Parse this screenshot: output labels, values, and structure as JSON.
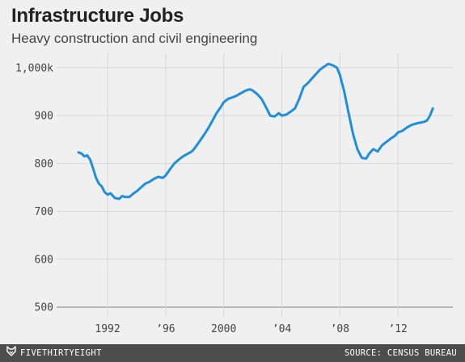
{
  "chart_data": {
    "type": "line",
    "title": "Infrastructure Jobs",
    "subtitle": "Heavy construction and civil engineering",
    "xlabel": "",
    "ylabel": "",
    "xlim": [
      1988.6,
      2015.5
    ],
    "ylim": [
      480,
      1030
    ],
    "x_ticks": [
      {
        "value": 1992,
        "label": "1992"
      },
      {
        "value": 1996,
        "label": "’96"
      },
      {
        "value": 2000,
        "label": "2000"
      },
      {
        "value": 2004,
        "label": "’04"
      },
      {
        "value": 2008,
        "label": "’08"
      },
      {
        "value": 2012,
        "label": "’12"
      }
    ],
    "y_ticks": [
      {
        "value": 500,
        "label": "500"
      },
      {
        "value": 600,
        "label": "600"
      },
      {
        "value": 700,
        "label": "700"
      },
      {
        "value": 800,
        "label": "800"
      },
      {
        "value": 900,
        "label": "900"
      },
      {
        "value": 1000,
        "label": "1,000k"
      }
    ],
    "grid": true,
    "color": "#1f8fdb",
    "series": [
      {
        "name": "",
        "x": [
          1990.0,
          1990.2,
          1990.4,
          1990.6,
          1990.8,
          1991.0,
          1991.2,
          1991.4,
          1991.6,
          1991.8,
          1992.0,
          1992.2,
          1992.5,
          1992.8,
          1993.0,
          1993.2,
          1993.5,
          1993.8,
          1994.0,
          1994.3,
          1994.6,
          1994.9,
          1995.2,
          1995.5,
          1995.8,
          1996.0,
          1996.3,
          1996.6,
          1996.9,
          1997.2,
          1997.5,
          1997.8,
          1998.0,
          1998.3,
          1998.6,
          1998.9,
          1999.2,
          1999.5,
          1999.8,
          2000.0,
          2000.3,
          2000.6,
          2000.9,
          2001.2,
          2001.5,
          2001.8,
          2002.0,
          2002.3,
          2002.6,
          2002.9,
          2003.2,
          2003.5,
          2003.8,
          2004.0,
          2004.3,
          2004.6,
          2004.9,
          2005.2,
          2005.5,
          2005.8,
          2006.0,
          2006.3,
          2006.6,
          2006.9,
          2007.2,
          2007.5,
          2007.8,
          2008.0,
          2008.3,
          2008.6,
          2008.9,
          2009.2,
          2009.5,
          2009.8,
          2010.0,
          2010.3,
          2010.6,
          2010.9,
          2011.2,
          2011.5,
          2011.8,
          2012.0,
          2012.3,
          2012.6,
          2012.9,
          2013.2,
          2013.5,
          2013.8,
          2014.0,
          2014.2,
          2014.4
        ],
        "values": [
          823,
          821,
          815,
          817,
          808,
          790,
          770,
          758,
          752,
          740,
          735,
          738,
          728,
          726,
          732,
          730,
          730,
          738,
          742,
          750,
          758,
          762,
          768,
          772,
          770,
          775,
          788,
          800,
          808,
          815,
          820,
          825,
          832,
          845,
          858,
          872,
          888,
          905,
          918,
          928,
          935,
          938,
          942,
          947,
          952,
          955,
          952,
          945,
          935,
          918,
          900,
          898,
          905,
          900,
          902,
          908,
          915,
          935,
          960,
          968,
          975,
          985,
          995,
          1002,
          1008,
          1005,
          1000,
          985,
          950,
          905,
          862,
          830,
          812,
          810,
          820,
          830,
          825,
          838,
          845,
          852,
          858,
          865,
          868,
          875,
          880,
          883,
          885,
          887,
          890,
          900,
          915
        ]
      }
    ]
  },
  "footer": {
    "brand": "FIVETHIRTYEIGHT",
    "source": "SOURCE: CENSUS BUREAU"
  },
  "colors": {
    "background": "#f0f0f0",
    "grid": "#d8d8d8",
    "baseline": "#a8a8a8",
    "footer_bg": "#4d4d4d",
    "line": "#1f8fdb"
  },
  "icons": {
    "brand_logo": "fivethirtyeight-fox-icon"
  }
}
